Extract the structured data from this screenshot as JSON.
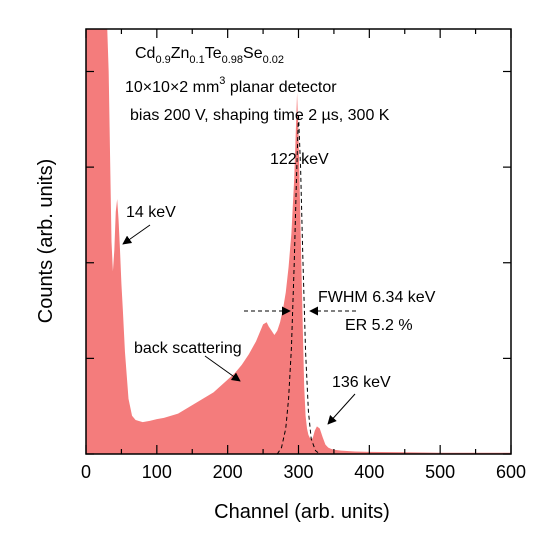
{
  "chart_data": {
    "type": "area",
    "xlabel": "Channel (arb. units)",
    "ylabel": "Counts (arb. units)",
    "xlim": [
      0,
      600
    ],
    "ylim": [
      0,
      100
    ],
    "x_ticks": [
      "0",
      "100",
      "200",
      "300",
      "400",
      "500",
      "600"
    ],
    "grid": false,
    "fill_color": "#f47c7c",
    "fit_line_style": "dashed",
    "description_lines": {
      "line1": {
        "parts": [
          {
            "t": "Cd",
            "s": "n"
          },
          {
            "t": "0.9",
            "s": "sub"
          },
          {
            "t": "Zn",
            "s": "n"
          },
          {
            "t": "0.1",
            "s": "sub"
          },
          {
            "t": "Te",
            "s": "n"
          },
          {
            "t": "0.98",
            "s": "sub"
          },
          {
            "t": "Se",
            "s": "n"
          },
          {
            "t": "0.02",
            "s": "sub"
          }
        ]
      },
      "line2": {
        "parts": [
          {
            "t": "10×10×2 mm",
            "s": "n"
          },
          {
            "t": "3",
            "s": "sup"
          },
          {
            "t": " planar detector",
            "s": "n"
          }
        ]
      },
      "line3": "bias 200 V,  shaping time 2 µs,  300 K"
    },
    "annotations": {
      "peak_122": "122 keV",
      "peak_14": "14 keV",
      "peak_136": "136 keV",
      "fwhm": "FWHM 6.34 keV",
      "er": "ER 5.2 %",
      "back_scattering": "back scattering"
    },
    "spectrum": {
      "x": [
        0,
        5,
        10,
        15,
        20,
        25,
        30,
        32,
        34,
        36,
        38,
        40,
        42,
        44,
        46,
        48,
        50,
        52,
        55,
        60,
        65,
        70,
        80,
        90,
        100,
        110,
        120,
        130,
        140,
        150,
        160,
        170,
        180,
        190,
        200,
        210,
        220,
        230,
        240,
        245,
        250,
        255,
        258,
        262,
        266,
        270,
        274,
        278,
        282,
        286,
        290,
        294,
        296,
        298,
        300,
        302,
        304,
        306,
        308,
        310,
        312,
        314,
        316,
        318,
        320,
        323,
        326,
        330,
        334,
        338,
        342,
        346,
        350,
        360,
        380,
        400,
        450,
        500,
        550,
        600
      ],
      "y": [
        100,
        100,
        100,
        100,
        100,
        100,
        100,
        90,
        70,
        50,
        43,
        48,
        57,
        60,
        55,
        48,
        40,
        34,
        24,
        13,
        9,
        8,
        7.5,
        7.8,
        8.2,
        8.5,
        9,
        9.5,
        10.5,
        11.5,
        12.5,
        13.5,
        14.5,
        16,
        17.5,
        19,
        21,
        23.5,
        26.5,
        28.5,
        30.5,
        31,
        30,
        29,
        28,
        29,
        31,
        34,
        38,
        44,
        52,
        65,
        75,
        85,
        75,
        60,
        45,
        30,
        16,
        9,
        6,
        4.5,
        3.8,
        3.5,
        3.7,
        5.5,
        6.5,
        6,
        4,
        2.2,
        1.5,
        1.2,
        1,
        0.8,
        0.6,
        0.5,
        0.4,
        0.3,
        0.3,
        0.3
      ]
    },
    "gaussian_fit": {
      "x": [
        270,
        276,
        282,
        286,
        290,
        294,
        297,
        300,
        303,
        306,
        310,
        314,
        318,
        324,
        330
      ],
      "y": [
        0,
        1.5,
        6,
        13,
        25,
        45,
        64,
        80,
        67,
        47,
        24,
        10,
        3.5,
        0.8,
        0
      ]
    }
  }
}
